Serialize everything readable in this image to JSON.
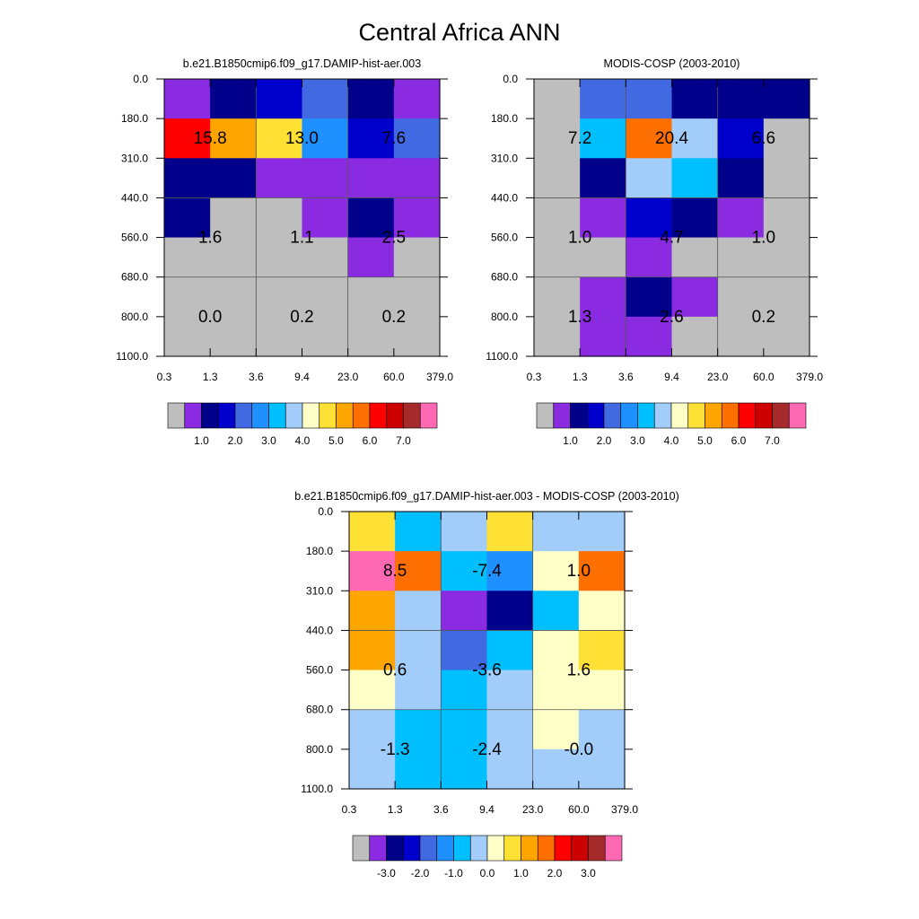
{
  "figure_title": "Central Africa ANN",
  "chart_data": [
    {
      "type": "heatmap",
      "title": "b.e21.B1850cmip6.f09_g17.DAMIP-hist-aer.003",
      "x_tick_labels": [
        "0.3",
        "1.3",
        "3.6",
        "9.4",
        "23.0",
        "60.0",
        "379.0"
      ],
      "y_tick_labels": [
        "0.0",
        "180.0",
        "310.0",
        "440.0",
        "560.0",
        "680.0",
        "800.0",
        "1100.0"
      ],
      "colorbar": {
        "colors": [
          "#bebebe",
          "#8a2be2",
          "#00008b",
          "#0000cd",
          "#4169e1",
          "#1e90ff",
          "#00bfff",
          "#a2cdfa",
          "#ffffc8",
          "#ffe035",
          "#ffa500",
          "#ff6f00",
          "#ff0000",
          "#cd0000",
          "#a52a2a",
          "#ff69b4"
        ],
        "labels": [
          "1.0",
          "2.0",
          "3.0",
          "4.0",
          "5.0",
          "6.0",
          "7.0"
        ]
      },
      "cell_colors": [
        [
          "#8a2be2",
          "#00008b",
          "#0000cd",
          "#4169e1",
          "#00008b",
          "#8a2be2"
        ],
        [
          "#ff0000",
          "#ffa500",
          "#ffe035",
          "#1e90ff",
          "#0000cd",
          "#4169e1"
        ],
        [
          "#00008b",
          "#00008b",
          "#8a2be2",
          "#8a2be2",
          "#8a2be2",
          "#8a2be2"
        ],
        [
          "#00008b",
          "#bebebe",
          "#bebebe",
          "#8a2be2",
          "#00008b",
          "#8a2be2"
        ],
        [
          "#bebebe",
          "#bebebe",
          "#bebebe",
          "#bebebe",
          "#8a2be2",
          "#bebebe"
        ],
        [
          "#bebebe",
          "#bebebe",
          "#bebebe",
          "#bebebe",
          "#bebebe",
          "#bebebe"
        ],
        [
          "#bebebe",
          "#bebebe",
          "#bebebe",
          "#bebebe",
          "#bebebe",
          "#bebebe"
        ]
      ],
      "labels": [
        {
          "text": "15.8",
          "block_col": 0,
          "block_row": 0
        },
        {
          "text": "13.0",
          "block_col": 1,
          "block_row": 0
        },
        {
          "text": "7.6",
          "block_col": 2,
          "block_row": 0
        },
        {
          "text": "1.6",
          "block_col": 0,
          "block_row": 1
        },
        {
          "text": "1.1",
          "block_col": 1,
          "block_row": 1
        },
        {
          "text": "2.5",
          "block_col": 2,
          "block_row": 1
        },
        {
          "text": "0.0",
          "block_col": 0,
          "block_row": 2
        },
        {
          "text": "0.2",
          "block_col": 1,
          "block_row": 2
        },
        {
          "text": "0.2",
          "block_col": 2,
          "block_row": 2
        }
      ]
    },
    {
      "type": "heatmap",
      "title": "MODIS-COSP (2003-2010)",
      "x_tick_labels": [
        "0.3",
        "1.3",
        "3.6",
        "9.4",
        "23.0",
        "60.0",
        "379.0"
      ],
      "y_tick_labels": [
        "0.0",
        "180.0",
        "310.0",
        "440.0",
        "560.0",
        "680.0",
        "800.0",
        "1100.0"
      ],
      "colorbar": {
        "colors": [
          "#bebebe",
          "#8a2be2",
          "#00008b",
          "#0000cd",
          "#4169e1",
          "#1e90ff",
          "#00bfff",
          "#a2cdfa",
          "#ffffc8",
          "#ffe035",
          "#ffa500",
          "#ff6f00",
          "#ff0000",
          "#cd0000",
          "#a52a2a",
          "#ff69b4"
        ],
        "labels": [
          "1.0",
          "2.0",
          "3.0",
          "4.0",
          "5.0",
          "6.0",
          "7.0"
        ]
      },
      "cell_colors": [
        [
          "#bebebe",
          "#4169e1",
          "#4169e1",
          "#00008b",
          "#00008b",
          "#00008b"
        ],
        [
          "#bebebe",
          "#00bfff",
          "#ff6f00",
          "#a2cdfa",
          "#0000cd",
          "#bebebe"
        ],
        [
          "#bebebe",
          "#00008b",
          "#a2cdfa",
          "#00bfff",
          "#00008b",
          "#bebebe"
        ],
        [
          "#bebebe",
          "#8a2be2",
          "#0000cd",
          "#00008b",
          "#8a2be2",
          "#bebebe"
        ],
        [
          "#bebebe",
          "#bebebe",
          "#8a2be2",
          "#bebebe",
          "#bebebe",
          "#bebebe"
        ],
        [
          "#bebebe",
          "#8a2be2",
          "#00008b",
          "#8a2be2",
          "#bebebe",
          "#bebebe"
        ],
        [
          "#bebebe",
          "#8a2be2",
          "#8a2be2",
          "#bebebe",
          "#bebebe",
          "#bebebe"
        ]
      ],
      "labels": [
        {
          "text": "7.2",
          "block_col": 0,
          "block_row": 0
        },
        {
          "text": "20.4",
          "block_col": 1,
          "block_row": 0
        },
        {
          "text": "6.6",
          "block_col": 2,
          "block_row": 0
        },
        {
          "text": "1.0",
          "block_col": 0,
          "block_row": 1
        },
        {
          "text": "4.7",
          "block_col": 1,
          "block_row": 1
        },
        {
          "text": "1.0",
          "block_col": 2,
          "block_row": 1
        },
        {
          "text": "1.3",
          "block_col": 0,
          "block_row": 2
        },
        {
          "text": "2.6",
          "block_col": 1,
          "block_row": 2
        },
        {
          "text": "0.2",
          "block_col": 2,
          "block_row": 2
        }
      ]
    },
    {
      "type": "heatmap",
      "title": "b.e21.B1850cmip6.f09_g17.DAMIP-hist-aer.003 - MODIS-COSP (2003-2010)",
      "x_tick_labels": [
        "0.3",
        "1.3",
        "3.6",
        "9.4",
        "23.0",
        "60.0",
        "379.0"
      ],
      "y_tick_labels": [
        "0.0",
        "180.0",
        "310.0",
        "440.0",
        "560.0",
        "680.0",
        "800.0",
        "1100.0"
      ],
      "colorbar": {
        "colors": [
          "#bebebe",
          "#8a2be2",
          "#00008b",
          "#0000cd",
          "#4169e1",
          "#1e90ff",
          "#00bfff",
          "#a2cdfa",
          "#ffffc8",
          "#ffe035",
          "#ffa500",
          "#ff6f00",
          "#ff0000",
          "#cd0000",
          "#a52a2a",
          "#ff69b4"
        ],
        "labels": [
          "-3.0",
          "-2.0",
          "-1.0",
          "0.0",
          "1.0",
          "2.0",
          "3.0"
        ]
      },
      "cell_colors": [
        [
          "#ffe035",
          "#00bfff",
          "#a2cdfa",
          "#ffe035",
          "#a2cdfa",
          "#a2cdfa"
        ],
        [
          "#ff69b4",
          "#ff6f00",
          "#00bfff",
          "#1e90ff",
          "#ffffc8",
          "#ff6f00"
        ],
        [
          "#ffa500",
          "#a2cdfa",
          "#8a2be2",
          "#00008b",
          "#00bfff",
          "#ffffc8"
        ],
        [
          "#ffa500",
          "#a2cdfa",
          "#4169e1",
          "#00bfff",
          "#ffffc8",
          "#ffe035"
        ],
        [
          "#ffffc8",
          "#a2cdfa",
          "#00bfff",
          "#a2cdfa",
          "#ffffc8",
          "#ffffc8"
        ],
        [
          "#a2cdfa",
          "#00bfff",
          "#00bfff",
          "#a2cdfa",
          "#ffffc8",
          "#a2cdfa"
        ],
        [
          "#a2cdfa",
          "#00bfff",
          "#00bfff",
          "#a2cdfa",
          "#a2cdfa",
          "#a2cdfa"
        ]
      ],
      "labels": [
        {
          "text": "8.5",
          "block_col": 0,
          "block_row": 0
        },
        {
          "text": "-7.4",
          "block_col": 1,
          "block_row": 0
        },
        {
          "text": "1.0",
          "block_col": 2,
          "block_row": 0
        },
        {
          "text": "0.6",
          "block_col": 0,
          "block_row": 1
        },
        {
          "text": "-3.6",
          "block_col": 1,
          "block_row": 1
        },
        {
          "text": "1.6",
          "block_col": 2,
          "block_row": 1
        },
        {
          "text": "-1.3",
          "block_col": 0,
          "block_row": 2
        },
        {
          "text": "-2.4",
          "block_col": 1,
          "block_row": 2
        },
        {
          "text": "-0.0",
          "block_col": 2,
          "block_row": 2
        }
      ]
    }
  ]
}
